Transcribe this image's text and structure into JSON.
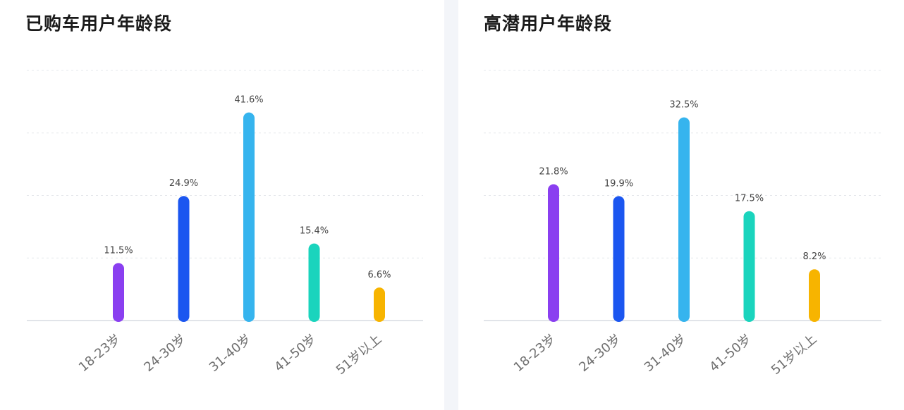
{
  "chart_data": [
    {
      "type": "bar",
      "title": "已购车用户年龄段",
      "categories": [
        "18-23岁",
        "24-30岁",
        "31-40岁",
        "41-50岁",
        "51岁以上"
      ],
      "values": [
        11.5,
        24.9,
        41.6,
        15.4,
        6.6
      ],
      "data_labels": [
        "11.5%",
        "24.9%",
        "41.6%",
        "15.4%",
        "6.6%"
      ],
      "colors": [
        "#8a3ff0",
        "#1b56f0",
        "#36b4ee",
        "#1ad4bd",
        "#f7b400"
      ],
      "ylim": [
        0,
        50
      ],
      "grid": true
    },
    {
      "type": "bar",
      "title": "高潜用户年龄段",
      "categories": [
        "18-23岁",
        "24-30岁",
        "31-40岁",
        "41-50岁",
        "51岁以上"
      ],
      "values": [
        21.8,
        19.9,
        32.5,
        17.5,
        8.2
      ],
      "data_labels": [
        "21.8%",
        "19.9%",
        "32.5%",
        "17.5%",
        "8.2%"
      ],
      "colors": [
        "#8a3ff0",
        "#1b56f0",
        "#36b4ee",
        "#1ad4bd",
        "#f7b400"
      ],
      "ylim": [
        0,
        40
      ],
      "grid": true
    }
  ]
}
